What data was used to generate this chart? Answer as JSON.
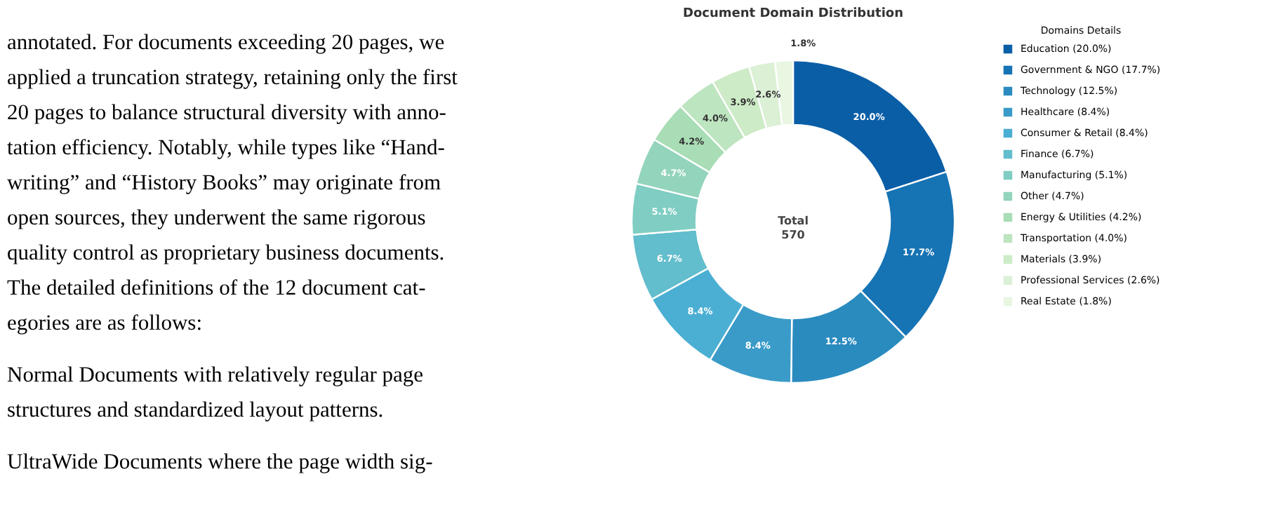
{
  "chart_data": {
    "type": "donut",
    "title": "Document Domain Distribution",
    "legend_title": "Domains Details",
    "legend": "right",
    "categories": [
      "Education (20.0%)",
      "Government & NGO (17.7%)",
      "Technology (12.5%)",
      "Healthcare (8.4%)",
      "Consumer & Retail (8.4%)",
      "Finance (6.7%)",
      "Manufacturing (5.1%)",
      "Other (4.7%)",
      "Energy & Utilities (4.2%)",
      "Transportation (4.0%)",
      "Materials (3.9%)",
      "Professional Services (2.6%)",
      "Real Estate (1.8%)"
    ],
    "values": [
      20.0,
      17.7,
      12.5,
      8.4,
      8.4,
      6.7,
      5.1,
      4.7,
      4.2,
      4.0,
      3.9,
      2.6,
      1.8
    ],
    "value_labels": [
      "20.0%",
      "17.7%",
      "12.5%",
      "8.4%",
      "8.4%",
      "6.7%",
      "5.1%",
      "4.7%",
      "4.2%",
      "4.0%",
      "3.9%",
      "2.6%",
      "1.8%"
    ],
    "colors": [
      "#0a5ea6",
      "#1673b4",
      "#2a8bbf",
      "#3a9bc8",
      "#4bafd3",
      "#62bdcc",
      "#7fcdc3",
      "#93d4bc",
      "#a8ddb5",
      "#bde5c0",
      "#cdebc6",
      "#dbf0d4",
      "#e8f6e2"
    ],
    "annotations": [
      "Total\n570",
      "annotated. For documents exceeding 20 pages, we",
      "applied a truncation strategy, retaining only the first",
      "20 pages to balance structural diversity with anno-",
      "tation efficiency. Notably, while types like “Hand-",
      "writing” and “History Books” may originate from",
      "open sources, they underwent the same rigorous",
      "quality control as proprietary business documents.",
      "    The detailed definitions of the 12 document cat-",
      "egories are as follows:",
      "Normal    Documents with relatively regular page",
      "structures and standardized layout patterns.",
      "UltraWide    Documents where the page width sig-"
    ]
  }
}
